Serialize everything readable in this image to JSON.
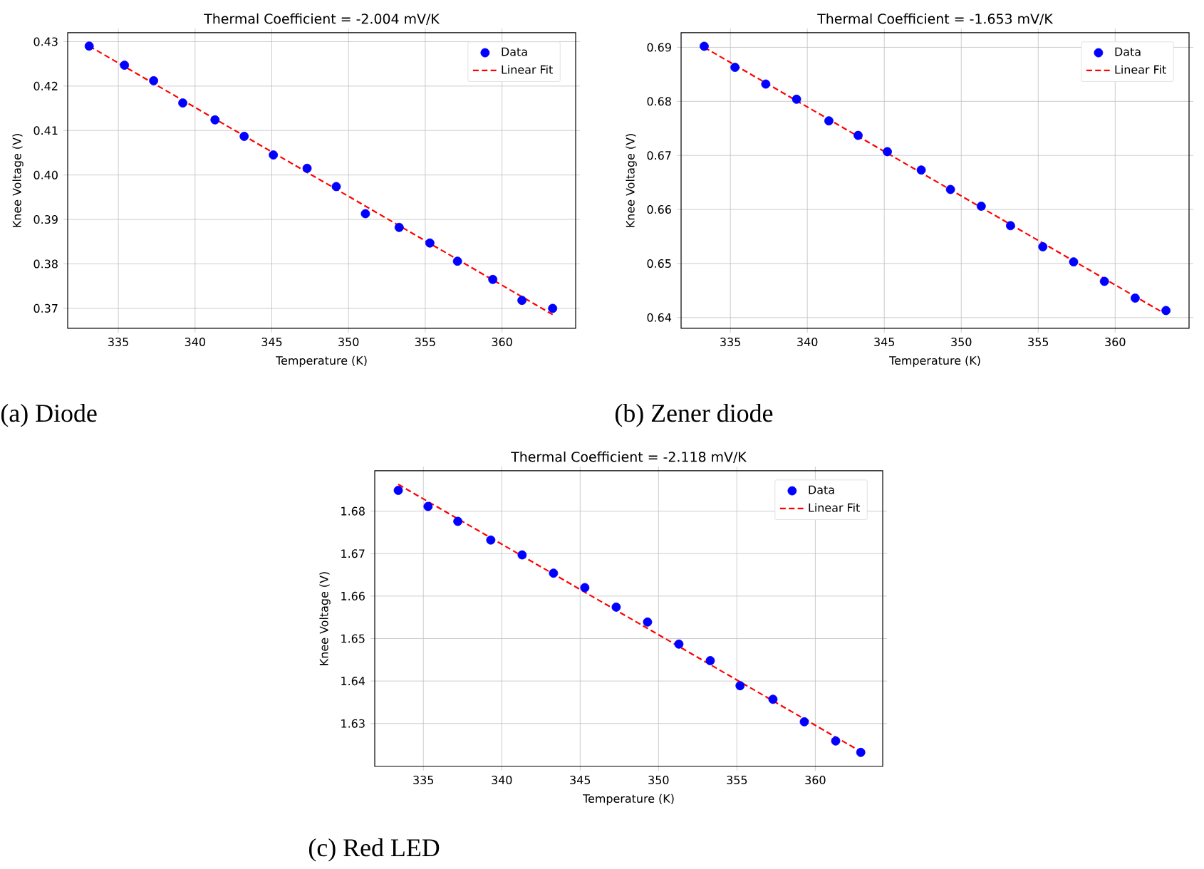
{
  "chart_data": [
    {
      "type": "scatter",
      "title": "Thermal Coefficient = -2.004 mV/K",
      "xlabel": "Temperature (K)",
      "ylabel": "Knee Voltage (V)",
      "annotations": [
        "(a) Diode"
      ],
      "xlim": [
        331.7,
        364.8
      ],
      "ylim": [
        0.3655,
        0.432
      ],
      "xticks": [
        335,
        340,
        345,
        350,
        355,
        360
      ],
      "yticks": [
        0.37,
        0.38,
        0.39,
        {
          "value": 0.4,
          "label": "0.40"
        },
        0.41,
        0.42,
        0.43
      ],
      "grid": true,
      "legend": "top right",
      "series": [
        {
          "name": "Data",
          "color": "#0000ff",
          "x": [
            333.1,
            335.4,
            337.3,
            339.2,
            341.3,
            343.2,
            345.1,
            347.3,
            349.2,
            351.1,
            353.3,
            355.3,
            357.1,
            359.4,
            361.3,
            363.3
          ],
          "values": [
            0.429,
            0.4247,
            0.4212,
            0.4162,
            0.4124,
            0.4087,
            0.4045,
            0.4015,
            0.3974,
            0.3913,
            0.3882,
            0.3847,
            0.3806,
            0.3765,
            0.3718,
            0.37
          ]
        },
        {
          "name": "Linear Fit",
          "type": "line",
          "color": "#ff0000",
          "line_style": "dashed",
          "x": [
            333.1,
            363.3
          ],
          "values": [
            0.429,
            0.3686
          ]
        }
      ]
    },
    {
      "type": "scatter",
      "title": "Thermal Coefficient = -1.653 mV/K",
      "xlabel": "Temperature (K)",
      "ylabel": "Knee Voltage (V)",
      "annotations": [
        "(b) Zener diode"
      ],
      "xlim": [
        331.8,
        364.8
      ],
      "ylim": [
        0.638,
        0.6927
      ],
      "xticks": [
        335,
        340,
        345,
        350,
        355,
        360
      ],
      "yticks": [
        {
          "value": 0.64,
          "label": "0.64"
        },
        0.65,
        0.66,
        0.67,
        0.68,
        0.69
      ],
      "grid": true,
      "legend": "top right",
      "series": [
        {
          "name": "Data",
          "color": "#0000ff",
          "x": [
            333.3,
            335.3,
            337.3,
            339.3,
            341.4,
            343.3,
            345.2,
            347.4,
            349.3,
            351.3,
            353.2,
            355.3,
            357.3,
            359.3,
            361.3,
            363.3
          ],
          "values": [
            0.6902,
            0.6863,
            0.6832,
            0.6804,
            0.6764,
            0.6737,
            0.6707,
            0.6673,
            0.6637,
            0.6606,
            0.657,
            0.6531,
            0.6503,
            0.6467,
            0.6436,
            0.6413
          ]
        },
        {
          "name": "Linear Fit",
          "type": "line",
          "color": "#ff0000",
          "line_style": "dashed",
          "x": [
            333.3,
            363.3
          ],
          "values": [
            0.69,
            0.6406
          ]
        }
      ]
    },
    {
      "type": "scatter",
      "title": "Thermal Coefficient = -2.118 mV/K",
      "xlabel": "Temperature (K)",
      "ylabel": "Knee Voltage (V)",
      "annotations": [
        "(c) Red LED"
      ],
      "xlim": [
        331.9,
        364.3
      ],
      "ylim": [
        1.6199,
        1.6895
      ],
      "xticks": [
        335,
        340,
        345,
        350,
        355,
        360
      ],
      "yticks": [
        1.63,
        1.64,
        1.65,
        1.66,
        1.67,
        1.68
      ],
      "grid": true,
      "legend": "top right",
      "series": [
        {
          "name": "Data",
          "color": "#0000ff",
          "x": [
            333.4,
            335.3,
            337.2,
            339.3,
            341.3,
            343.3,
            345.3,
            347.3,
            349.3,
            351.3,
            353.3,
            355.2,
            357.3,
            359.3,
            361.3,
            362.9
          ],
          "values": [
            1.6849,
            1.6811,
            1.6776,
            1.6732,
            1.6697,
            1.6654,
            1.662,
            1.6574,
            1.6539,
            1.6487,
            1.6448,
            1.6389,
            1.6357,
            1.6304,
            1.6259,
            1.6232
          ]
        },
        {
          "name": "Linear Fit",
          "type": "line",
          "color": "#ff0000",
          "line_style": "dashed",
          "x": [
            333.4,
            362.9
          ],
          "values": [
            1.6863,
            1.6234
          ]
        }
      ]
    }
  ]
}
